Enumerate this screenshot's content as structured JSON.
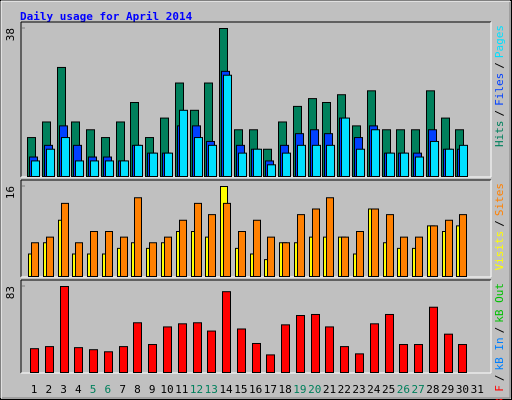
{
  "chart_data": [
    {
      "type": "bar",
      "title": "Daily usage for April 2014",
      "title_color": "#0000ff",
      "ylim": [
        0,
        38
      ],
      "yticks": [
        38
      ],
      "separator": "/",
      "series": [
        {
          "name": "Hits",
          "color": "#00805c",
          "values": [
            10,
            14,
            28,
            14,
            12,
            10,
            14,
            19,
            10,
            15,
            24,
            17,
            24,
            38,
            12,
            12,
            7,
            14,
            18,
            20,
            19,
            21,
            13,
            22,
            12,
            12,
            12,
            22,
            15,
            12,
            null
          ]
        },
        {
          "name": "Files",
          "color": "#0040ff",
          "values": [
            5,
            8,
            13,
            8,
            5,
            5,
            4,
            8,
            6,
            6,
            13,
            13,
            9,
            27,
            8,
            7,
            4,
            8,
            11,
            12,
            11,
            15,
            10,
            13,
            6,
            6,
            6,
            12,
            7,
            7,
            null
          ]
        },
        {
          "name": "Pages",
          "color": "#00e0ff",
          "values": [
            4,
            7,
            10,
            4,
            4,
            4,
            4,
            8,
            6,
            6,
            17,
            10,
            8,
            26,
            6,
            7,
            3,
            6,
            8,
            8,
            8,
            15,
            7,
            12,
            6,
            6,
            5,
            9,
            7,
            8,
            null
          ]
        }
      ]
    },
    {
      "type": "bar",
      "ylim": [
        0,
        16
      ],
      "yticks": [
        16
      ],
      "separator": "/",
      "series": [
        {
          "name": "Visits",
          "color": "#ffff00",
          "values": [
            4,
            6,
            10,
            4,
            4,
            4,
            5,
            6,
            5,
            6,
            8,
            8,
            7,
            16,
            5,
            4,
            3,
            6,
            6,
            7,
            7,
            7,
            4,
            12,
            6,
            5,
            5,
            9,
            8,
            9,
            null
          ]
        },
        {
          "name": "Sites",
          "color": "#ff8000",
          "values": [
            6,
            7,
            13,
            6,
            8,
            8,
            7,
            14,
            6,
            7,
            10,
            13,
            11,
            13,
            8,
            10,
            7,
            6,
            11,
            12,
            14,
            7,
            8,
            12,
            11,
            7,
            7,
            9,
            10,
            11,
            null
          ]
        }
      ]
    },
    {
      "type": "bar",
      "ylim": [
        0,
        83
      ],
      "yticks": [
        83
      ],
      "separator": "/",
      "series": [
        {
          "name": "kB F",
          "color": "#ff0000",
          "values": [
            23,
            25,
            83,
            24,
            22,
            20,
            25,
            48,
            27,
            44,
            47,
            48,
            40,
            78,
            42,
            28,
            17,
            46,
            55,
            56,
            44,
            25,
            18,
            47,
            56,
            27,
            27,
            63,
            37,
            27,
            null
          ]
        }
      ],
      "side_labels": [
        {
          "text": "kB In",
          "color": "#0080ff"
        },
        {
          "text": "kB Out",
          "color": "#00c000"
        }
      ],
      "categories": [
        "1",
        "2",
        "3",
        "4",
        "5",
        "6",
        "7",
        "8",
        "9",
        "10",
        "11",
        "12",
        "13",
        "14",
        "15",
        "16",
        "17",
        "18",
        "19",
        "20",
        "21",
        "22",
        "23",
        "24",
        "25",
        "26",
        "27",
        "28",
        "29",
        "30",
        "31"
      ],
      "category_colors": [
        "#000000",
        "#000000",
        "#000000",
        "#000000",
        "#00805c",
        "#00805c",
        "#000000",
        "#000000",
        "#000000",
        "#000000",
        "#000000",
        "#00805c",
        "#00805c",
        "#000000",
        "#000000",
        "#000000",
        "#000000",
        "#000000",
        "#00805c",
        "#00805c",
        "#000000",
        "#000000",
        "#000000",
        "#000000",
        "#000000",
        "#00805c",
        "#00805c",
        "#000000",
        "#000000",
        "#000000",
        "#000000"
      ]
    }
  ]
}
